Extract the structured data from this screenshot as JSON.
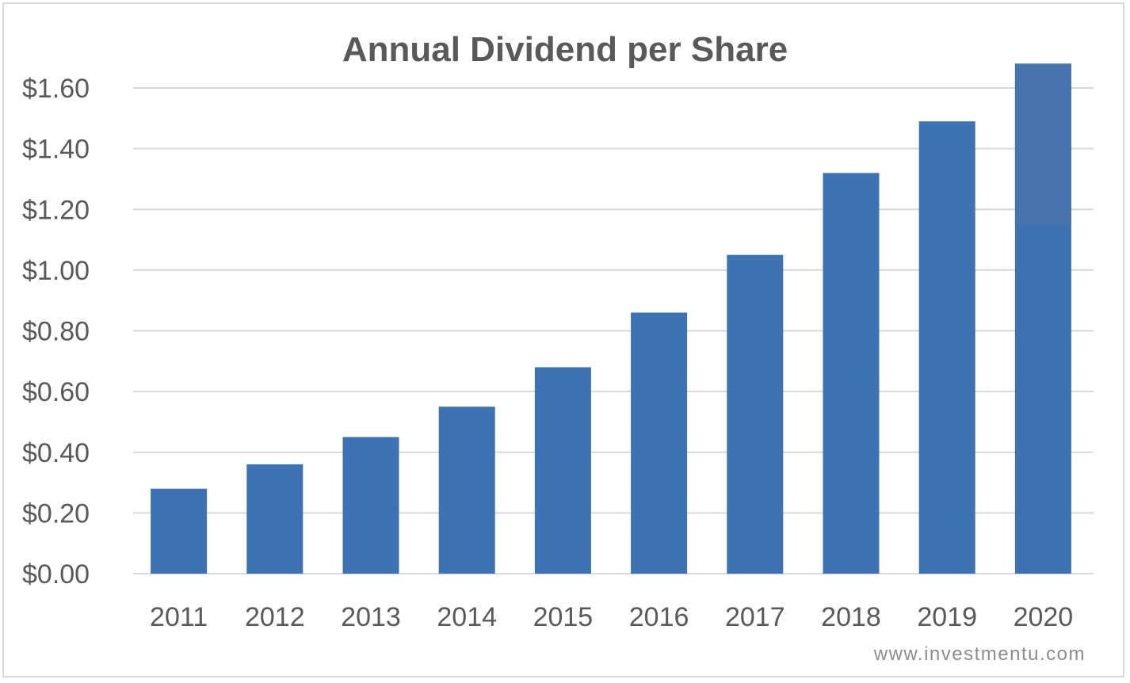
{
  "chart_data": {
    "type": "bar",
    "title": "Annual Dividend per Share",
    "xlabel": "",
    "ylabel": "",
    "categories": [
      "2011",
      "2012",
      "2013",
      "2014",
      "2015",
      "2016",
      "2017",
      "2018",
      "2019",
      "2020"
    ],
    "values": [
      0.28,
      0.36,
      0.45,
      0.55,
      0.68,
      0.86,
      1.05,
      1.32,
      1.49,
      1.68
    ],
    "ylim": [
      0,
      1.6
    ],
    "yticks": [
      0,
      0.2,
      0.4,
      0.6,
      0.8,
      1.0,
      1.2,
      1.4,
      1.6
    ],
    "ytick_labels": [
      "$0.00",
      "$0.20",
      "$0.40",
      "$0.60",
      "$0.80",
      "$1.00",
      "$1.20",
      "$1.40",
      "$1.60"
    ],
    "grid": "horizontal",
    "legend": "none",
    "colors": {
      "bar": "#3e73b3",
      "bar_highlight": "#4775ab",
      "grid": "#d9d9d9",
      "text": "#595959"
    }
  },
  "watermark": "www.investmentu.com"
}
